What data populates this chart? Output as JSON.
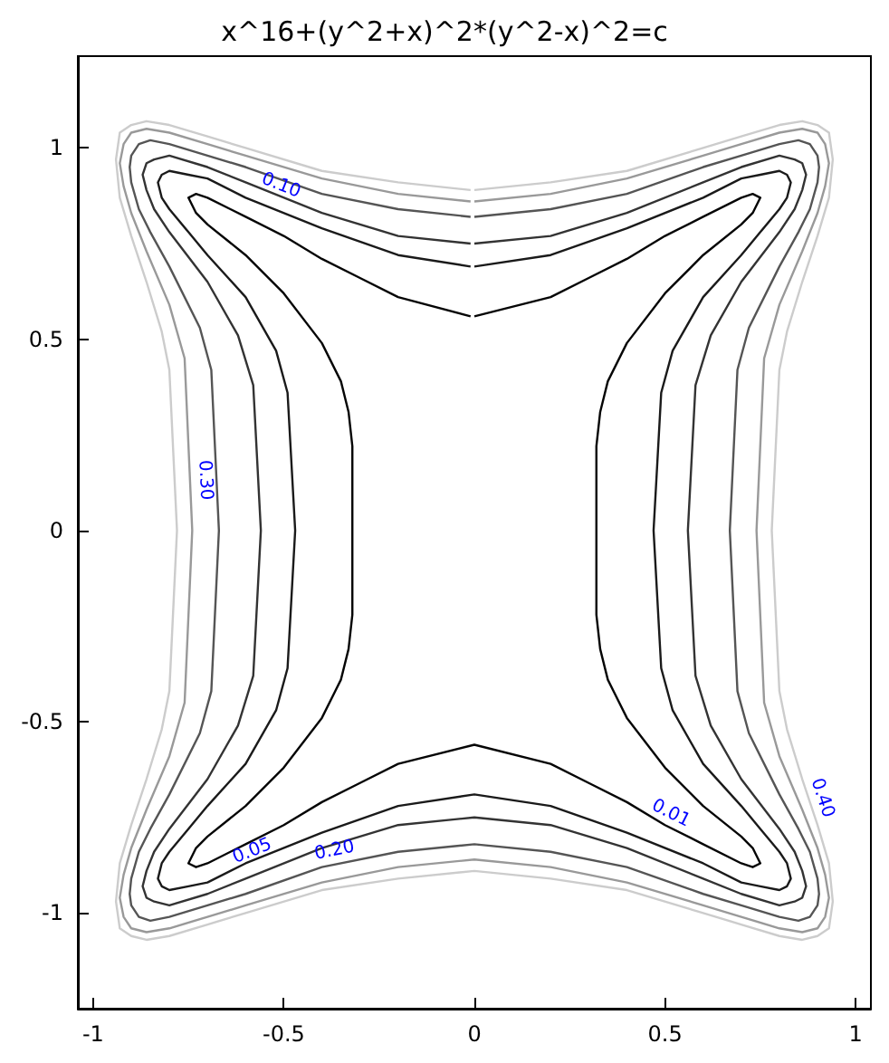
{
  "chart_data": {
    "type": "line",
    "title": "x^16+(y^2+x)^2*(y^2-x)^2=c",
    "xlim": [
      -1.04,
      1.04
    ],
    "ylim": [
      -1.25,
      1.24
    ],
    "xticks": [
      -1,
      -0.5,
      0,
      0.5,
      1
    ],
    "yticks": [
      -1,
      -0.5,
      0,
      0.5,
      1
    ],
    "grid": false,
    "marker": "none",
    "line_style": "solid",
    "series": [
      {
        "color": "#050505",
        "x": [
          0,
          0.2,
          0.3,
          0.4,
          0.5,
          0.6,
          0.7,
          0.73,
          0.75,
          0.73,
          0.7,
          0.6,
          0.5,
          0.4,
          0.35,
          0.33,
          0.32,
          0.32,
          0.33,
          0.35,
          0.4,
          0.5,
          0.6,
          0.7,
          0.73,
          0.75,
          0.73,
          0.7,
          0.6,
          0.5,
          0.4,
          0.3,
          0.2,
          0,
          -0.2,
          -0.3,
          -0.4,
          -0.5,
          -0.6,
          -0.7,
          -0.73,
          -0.75,
          -0.73,
          -0.7,
          -0.6,
          -0.5,
          -0.4,
          -0.35,
          -0.33,
          -0.32,
          -0.32,
          -0.33,
          -0.35,
          -0.4,
          -0.5,
          -0.6,
          -0.7,
          -0.73,
          -0.75,
          -0.73,
          -0.7,
          -0.6,
          -0.5,
          -0.4,
          -0.3,
          -0.2,
          -0.01
        ],
        "values": [
          0.56,
          0.61,
          0.66,
          0.71,
          0.77,
          0.82,
          0.87,
          0.88,
          0.87,
          0.83,
          0.8,
          0.72,
          0.62,
          0.49,
          0.39,
          0.31,
          0.22,
          -0.22,
          -0.31,
          -0.39,
          -0.49,
          -0.62,
          -0.72,
          -0.8,
          -0.83,
          -0.87,
          -0.88,
          -0.87,
          -0.82,
          -0.77,
          -0.71,
          -0.66,
          -0.61,
          -0.56,
          -0.61,
          -0.66,
          -0.71,
          -0.77,
          -0.82,
          -0.87,
          -0.88,
          -0.87,
          -0.83,
          -0.8,
          -0.72,
          -0.62,
          -0.49,
          -0.39,
          -0.31,
          -0.22,
          0.22,
          0.31,
          0.39,
          0.49,
          0.62,
          0.72,
          0.8,
          0.83,
          0.87,
          0.88,
          0.87,
          0.82,
          0.77,
          0.71,
          0.66,
          0.61,
          0.56
        ]
      },
      {
        "color": "#1a1a1a",
        "x": [
          0,
          0.2,
          0.4,
          0.6,
          0.7,
          0.75,
          0.8,
          0.82,
          0.83,
          0.82,
          0.8,
          0.75,
          0.7,
          0.6,
          0.52,
          0.49,
          0.47,
          0.49,
          0.52,
          0.6,
          0.7,
          0.75,
          0.8,
          0.82,
          0.83,
          0.82,
          0.8,
          0.75,
          0.7,
          0.6,
          0.4,
          0.2,
          0,
          -0.2,
          -0.4,
          -0.6,
          -0.7,
          -0.75,
          -0.8,
          -0.82,
          -0.83,
          -0.82,
          -0.8,
          -0.75,
          -0.7,
          -0.6,
          -0.52,
          -0.49,
          -0.47,
          -0.49,
          -0.52,
          -0.6,
          -0.7,
          -0.75,
          -0.8,
          -0.82,
          -0.83,
          -0.82,
          -0.8,
          -0.75,
          -0.7,
          -0.6,
          -0.4,
          -0.2,
          -0.01
        ],
        "values": [
          0.69,
          0.72,
          0.79,
          0.87,
          0.92,
          0.93,
          0.94,
          0.93,
          0.91,
          0.87,
          0.84,
          0.78,
          0.72,
          0.61,
          0.47,
          0.36,
          0,
          -0.36,
          -0.47,
          -0.61,
          -0.72,
          -0.78,
          -0.84,
          -0.87,
          -0.91,
          -0.93,
          -0.94,
          -0.93,
          -0.92,
          -0.87,
          -0.79,
          -0.72,
          -0.69,
          -0.72,
          -0.79,
          -0.87,
          -0.92,
          -0.93,
          -0.94,
          -0.93,
          -0.91,
          -0.87,
          -0.84,
          -0.78,
          -0.72,
          -0.61,
          -0.47,
          -0.36,
          0,
          0.36,
          0.47,
          0.61,
          0.72,
          0.78,
          0.84,
          0.87,
          0.91,
          0.93,
          0.94,
          0.93,
          0.92,
          0.87,
          0.79,
          0.72,
          0.69
        ]
      },
      {
        "color": "#333333",
        "x": [
          0,
          0.2,
          0.4,
          0.6,
          0.7,
          0.8,
          0.84,
          0.86,
          0.87,
          0.86,
          0.84,
          0.8,
          0.7,
          0.62,
          0.58,
          0.56,
          0.58,
          0.62,
          0.7,
          0.8,
          0.84,
          0.86,
          0.87,
          0.86,
          0.84,
          0.8,
          0.7,
          0.6,
          0.4,
          0.2,
          0,
          -0.2,
          -0.4,
          -0.6,
          -0.7,
          -0.8,
          -0.84,
          -0.86,
          -0.87,
          -0.86,
          -0.84,
          -0.8,
          -0.7,
          -0.62,
          -0.58,
          -0.56,
          -0.58,
          -0.62,
          -0.7,
          -0.8,
          -0.84,
          -0.86,
          -0.87,
          -0.86,
          -0.84,
          -0.8,
          -0.7,
          -0.6,
          -0.4,
          -0.2,
          -0.01
        ],
        "values": [
          0.75,
          0.77,
          0.83,
          0.91,
          0.95,
          0.98,
          0.97,
          0.96,
          0.93,
          0.89,
          0.84,
          0.78,
          0.65,
          0.51,
          0.38,
          0,
          -0.38,
          -0.51,
          -0.65,
          -0.78,
          -0.84,
          -0.89,
          -0.93,
          -0.96,
          -0.97,
          -0.98,
          -0.95,
          -0.91,
          -0.83,
          -0.77,
          -0.75,
          -0.77,
          -0.83,
          -0.91,
          -0.95,
          -0.98,
          -0.97,
          -0.96,
          -0.93,
          -0.89,
          -0.84,
          -0.78,
          -0.65,
          -0.51,
          -0.38,
          0,
          0.38,
          0.51,
          0.65,
          0.78,
          0.84,
          0.89,
          0.93,
          0.96,
          0.97,
          0.98,
          0.95,
          0.91,
          0.83,
          0.77,
          0.75
        ]
      },
      {
        "color": "#555555",
        "x": [
          0,
          0.2,
          0.4,
          0.6,
          0.7,
          0.8,
          0.85,
          0.88,
          0.9,
          0.904,
          0.9,
          0.88,
          0.85,
          0.8,
          0.72,
          0.69,
          0.67,
          0.69,
          0.72,
          0.8,
          0.85,
          0.88,
          0.9,
          0.904,
          0.9,
          0.88,
          0.85,
          0.8,
          0.7,
          0.6,
          0.4,
          0.2,
          0,
          -0.2,
          -0.4,
          -0.6,
          -0.7,
          -0.8,
          -0.85,
          -0.88,
          -0.9,
          -0.904,
          -0.9,
          -0.88,
          -0.85,
          -0.8,
          -0.72,
          -0.69,
          -0.67,
          -0.69,
          -0.72,
          -0.8,
          -0.85,
          -0.88,
          -0.9,
          -0.904,
          -0.9,
          -0.88,
          -0.85,
          -0.8,
          -0.7,
          -0.6,
          -0.4,
          -0.2,
          -0.01
        ],
        "values": [
          0.82,
          0.84,
          0.88,
          0.95,
          0.98,
          1.01,
          1.02,
          1.01,
          0.98,
          0.95,
          0.91,
          0.84,
          0.78,
          0.69,
          0.53,
          0.42,
          0,
          -0.42,
          -0.53,
          -0.69,
          -0.78,
          -0.84,
          -0.91,
          -0.95,
          -0.98,
          -1.01,
          -1.02,
          -1.01,
          -0.98,
          -0.95,
          -0.88,
          -0.84,
          -0.82,
          -0.84,
          -0.88,
          -0.95,
          -0.98,
          -1.01,
          -1.02,
          -1.01,
          -0.98,
          -0.95,
          -0.91,
          -0.84,
          -0.78,
          -0.69,
          -0.53,
          -0.42,
          0,
          0.42,
          0.53,
          0.69,
          0.78,
          0.84,
          0.91,
          0.95,
          0.98,
          1.01,
          1.02,
          1.01,
          0.98,
          0.95,
          0.88,
          0.84,
          0.82
        ]
      },
      {
        "color": "#999999",
        "x": [
          0,
          0.2,
          0.4,
          0.6,
          0.7,
          0.8,
          0.86,
          0.9,
          0.92,
          0.93,
          0.92,
          0.9,
          0.86,
          0.8,
          0.76,
          0.74,
          0.76,
          0.8,
          0.86,
          0.9,
          0.92,
          0.93,
          0.92,
          0.9,
          0.86,
          0.8,
          0.7,
          0.6,
          0.4,
          0.2,
          0,
          -0.2,
          -0.4,
          -0.6,
          -0.7,
          -0.8,
          -0.86,
          -0.9,
          -0.92,
          -0.93,
          -0.92,
          -0.9,
          -0.86,
          -0.8,
          -0.76,
          -0.74,
          -0.76,
          -0.8,
          -0.86,
          -0.9,
          -0.92,
          -0.93,
          -0.92,
          -0.9,
          -0.86,
          -0.8,
          -0.7,
          -0.6,
          -0.4,
          -0.2,
          -0.01
        ],
        "values": [
          0.86,
          0.88,
          0.92,
          0.98,
          1.01,
          1.04,
          1.05,
          1.04,
          1.01,
          0.96,
          0.9,
          0.83,
          0.73,
          0.59,
          0.45,
          0,
          -0.45,
          -0.59,
          -0.73,
          -0.83,
          -0.9,
          -0.96,
          -1.01,
          -1.04,
          -1.05,
          -1.04,
          -1.01,
          -0.98,
          -0.92,
          -0.88,
          -0.86,
          -0.88,
          -0.92,
          -0.98,
          -1.01,
          -1.04,
          -1.05,
          -1.04,
          -1.01,
          -0.96,
          -0.9,
          -0.83,
          -0.73,
          -0.59,
          -0.45,
          0,
          0.45,
          0.59,
          0.73,
          0.83,
          0.9,
          0.96,
          1.01,
          1.04,
          1.05,
          1.04,
          1.01,
          0.98,
          0.92,
          0.88,
          0.86
        ]
      },
      {
        "color": "#cccccc",
        "x": [
          0,
          0.2,
          0.4,
          0.6,
          0.7,
          0.8,
          0.86,
          0.9,
          0.93,
          0.94,
          0.93,
          0.9,
          0.86,
          0.82,
          0.8,
          0.78,
          0.8,
          0.82,
          0.86,
          0.9,
          0.93,
          0.94,
          0.93,
          0.9,
          0.86,
          0.8,
          0.7,
          0.6,
          0.4,
          0.2,
          0,
          -0.2,
          -0.4,
          -0.6,
          -0.7,
          -0.8,
          -0.86,
          -0.9,
          -0.93,
          -0.94,
          -0.93,
          -0.9,
          -0.86,
          -0.82,
          -0.8,
          -0.78,
          -0.8,
          -0.82,
          -0.86,
          -0.9,
          -0.93,
          -0.94,
          -0.93,
          -0.9,
          -0.86,
          -0.8,
          -0.7,
          -0.6,
          -0.4,
          -0.2,
          -0.01
        ],
        "values": [
          0.89,
          0.91,
          0.94,
          1,
          1.03,
          1.06,
          1.07,
          1.06,
          1.04,
          0.97,
          0.87,
          0.77,
          0.65,
          0.52,
          0.42,
          0,
          -0.42,
          -0.52,
          -0.65,
          -0.77,
          -0.87,
          -0.97,
          -1.04,
          -1.06,
          -1.07,
          -1.06,
          -1.03,
          -1,
          -0.94,
          -0.91,
          -0.89,
          -0.91,
          -0.94,
          -1,
          -1.03,
          -1.06,
          -1.07,
          -1.06,
          -1.04,
          -0.97,
          -0.87,
          -0.77,
          -0.65,
          -0.52,
          -0.42,
          0,
          0.42,
          0.52,
          0.65,
          0.77,
          0.87,
          0.97,
          1.04,
          1.06,
          1.07,
          1.06,
          1.03,
          1,
          0.94,
          0.91,
          0.89
        ]
      }
    ],
    "annotations": [
      {
        "text": "0.10",
        "x": -0.52,
        "y": 0.87
      },
      {
        "text": "0.30",
        "x": -0.74,
        "y": 0.13
      },
      {
        "text": "0.01",
        "x": 0.5,
        "y": -0.77
      },
      {
        "text": "0.40",
        "x": 0.88,
        "y": -0.71
      },
      {
        "text": "0.05",
        "x": -0.57,
        "y": -0.87
      },
      {
        "text": "0.20",
        "x": -0.36,
        "y": -0.87
      }
    ]
  }
}
